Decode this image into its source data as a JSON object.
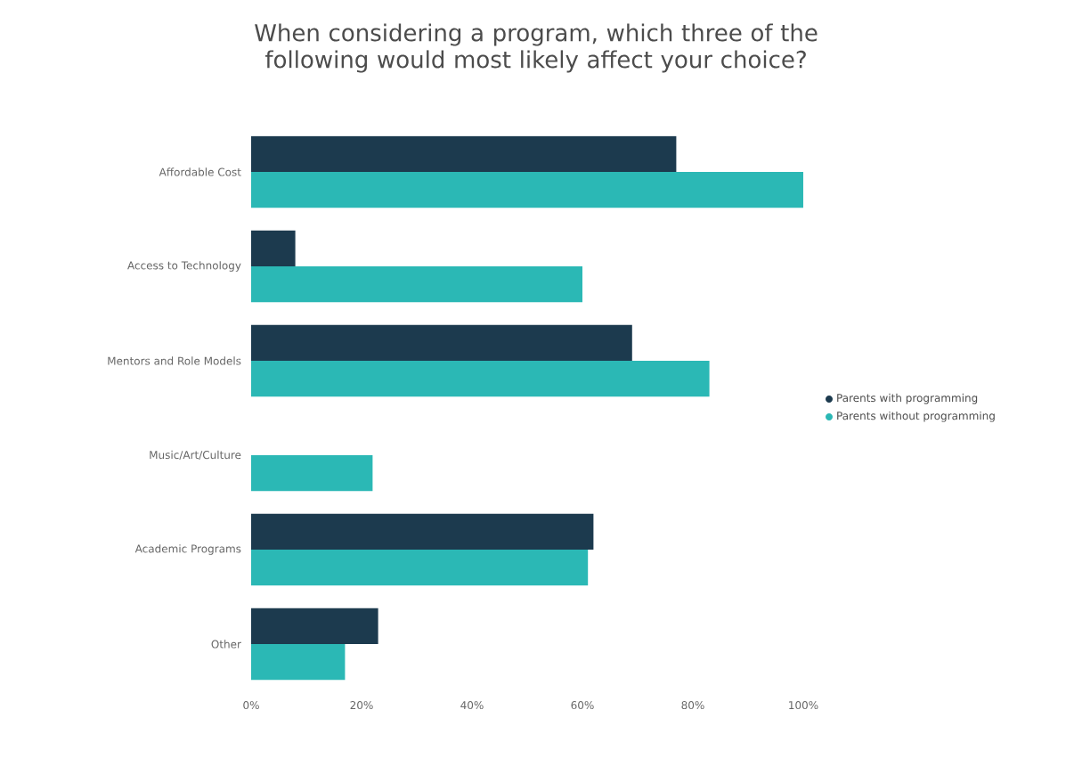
{
  "chart_data": {
    "type": "bar",
    "orientation": "horizontal",
    "title": "When considering a program, which three of the following would most likely affect your choice?",
    "categories": [
      "Affordable Cost",
      "Access to Technology",
      "Mentors and Role Models",
      "Music/Art/Culture",
      "Academic Programs",
      "Other"
    ],
    "series": [
      {
        "name": "Parents with programming",
        "color": "#1c3a4e",
        "values": [
          77,
          8,
          69,
          0,
          62,
          23
        ]
      },
      {
        "name": "Parents without programming",
        "color": "#2bb8b5",
        "values": [
          100,
          60,
          83,
          22,
          61,
          17
        ]
      }
    ],
    "xlim": [
      0,
      100
    ],
    "xticks": [
      {
        "value": 0,
        "label": "0%"
      },
      {
        "value": 20,
        "label": "20%"
      },
      {
        "value": 40,
        "label": "40%"
      },
      {
        "value": 60,
        "label": "60%"
      },
      {
        "value": 80,
        "label": "80%"
      },
      {
        "value": 100,
        "label": "100%"
      }
    ],
    "legend": "right"
  }
}
